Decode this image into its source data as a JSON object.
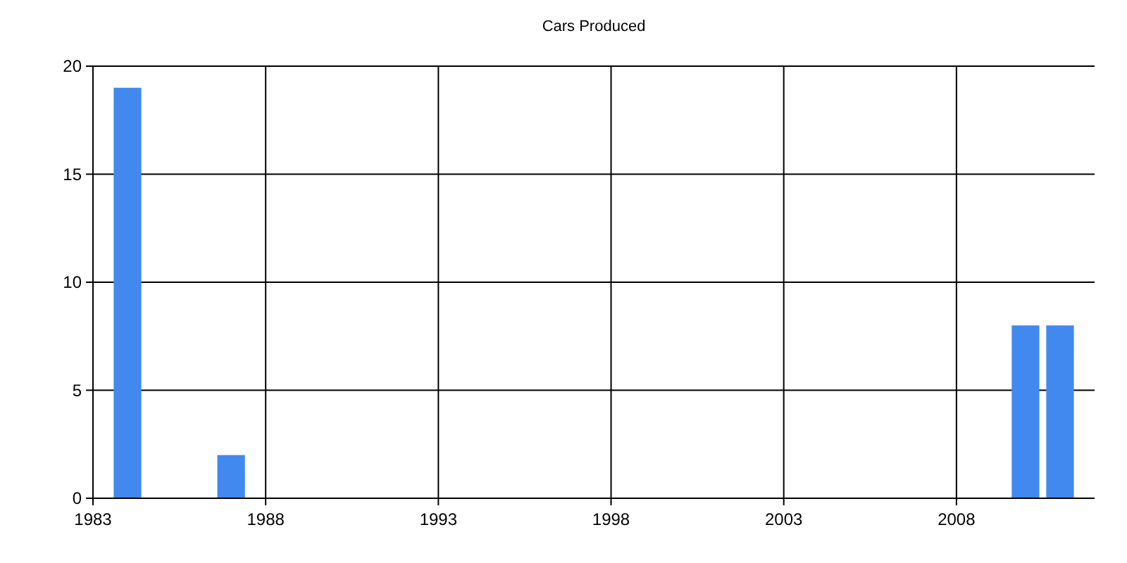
{
  "chart_data": {
    "type": "bar",
    "title": "Cars Produced",
    "x": [
      1984,
      1987,
      2010,
      2011
    ],
    "values": [
      19,
      2,
      8,
      8
    ],
    "color": "#4189ee",
    "xlim": [
      1983,
      2012
    ],
    "xticks": [
      1983,
      1988,
      1993,
      1998,
      2003,
      2008
    ],
    "ylim": [
      0,
      20
    ],
    "yticks": [
      0,
      5,
      10,
      15,
      20
    ],
    "grid": true
  }
}
